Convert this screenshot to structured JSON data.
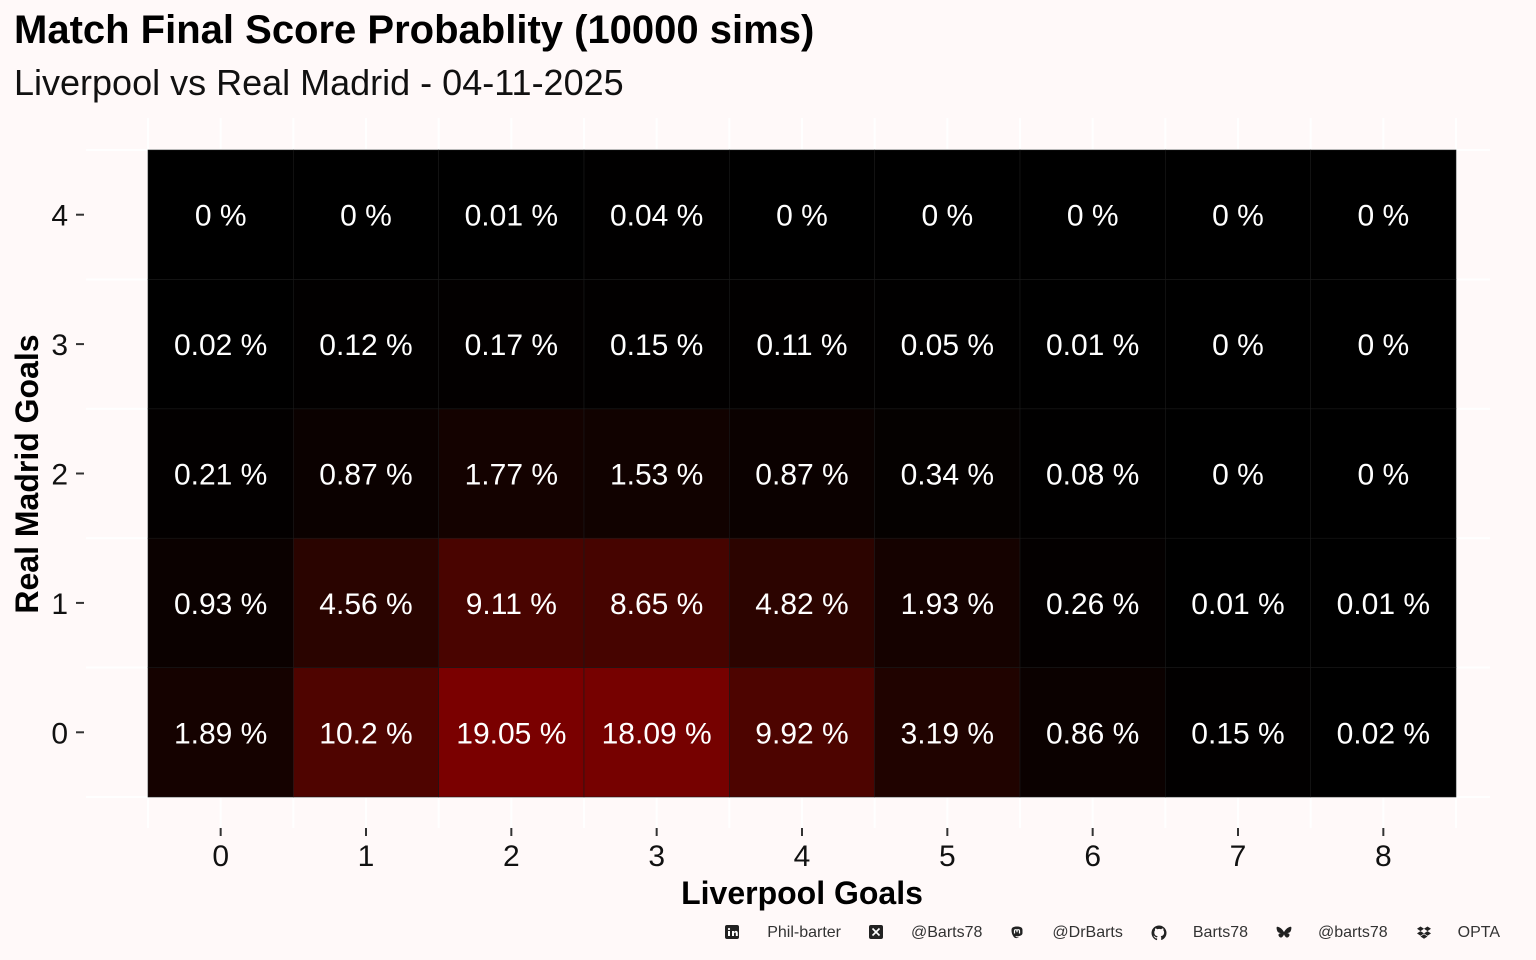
{
  "chart_data": {
    "type": "heatmap",
    "title": "Match Final Score Probablity (10000 sims)",
    "subtitle": "Liverpool vs Real Madrid - 04-11-2025",
    "xlabel": "Liverpool Goals",
    "ylabel": "Real Madrid Goals",
    "x_categories": [
      "0",
      "1",
      "2",
      "3",
      "4",
      "5",
      "6",
      "7",
      "8"
    ],
    "y_categories": [
      "0",
      "1",
      "2",
      "3",
      "4"
    ],
    "value_suffix": " %",
    "values": [
      [
        "1.89",
        "10.2",
        "19.05",
        "18.09",
        "9.92",
        "3.19",
        "0.86",
        "0.15",
        "0.02"
      ],
      [
        "0.93",
        "4.56",
        "9.11",
        "8.65",
        "4.82",
        "1.93",
        "0.26",
        "0.01",
        "0.01"
      ],
      [
        "0.21",
        "0.87",
        "1.77",
        "1.53",
        "0.87",
        "0.34",
        "0.08",
        "0",
        "0"
      ],
      [
        "0.02",
        "0.12",
        "0.17",
        "0.15",
        "0.11",
        "0.05",
        "0.01",
        "0",
        "0"
      ],
      [
        "0",
        "0",
        "0.01",
        "0.04",
        "0",
        "0",
        "0",
        "0",
        "0"
      ]
    ],
    "colors": {
      "low": "#000000",
      "high": "#7a0000",
      "label": "#ffffff",
      "background": "#fff9f9"
    },
    "grid": true
  },
  "footer": {
    "items": [
      {
        "icon": "linkedin-icon",
        "label": "Phil-barter"
      },
      {
        "icon": "x-twitter-icon",
        "label": "@Barts78"
      },
      {
        "icon": "mastodon-icon",
        "label": "@DrBarts"
      },
      {
        "icon": "github-icon",
        "label": "Barts78"
      },
      {
        "icon": "bluesky-icon",
        "label": "@barts78"
      },
      {
        "icon": "dropbox-icon",
        "label": "OPTA"
      }
    ]
  }
}
